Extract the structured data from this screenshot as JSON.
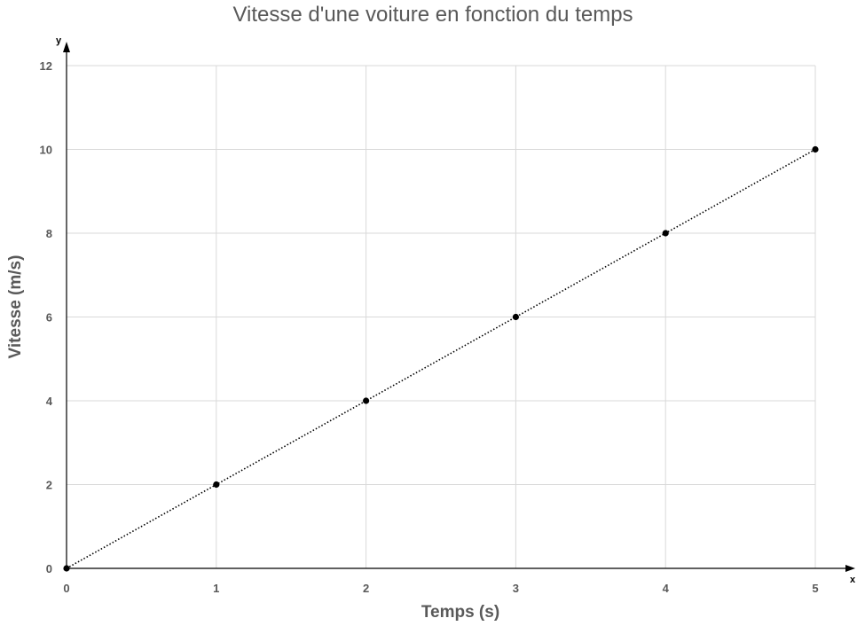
{
  "chart_data": {
    "type": "scatter",
    "title": "Vitesse d'une voiture en fonction du temps",
    "xlabel": "Temps (s)",
    "ylabel": "Vitesse (m/s)",
    "x_axis_letter": "x",
    "y_axis_letter": "y",
    "xlim": [
      0,
      5
    ],
    "ylim": [
      0,
      12
    ],
    "x_ticks": [
      0,
      1,
      2,
      3,
      4,
      5
    ],
    "y_ticks": [
      0,
      2,
      4,
      6,
      8,
      10,
      12
    ],
    "grid": true,
    "trendline": "linear, dotted",
    "series": [
      {
        "x": [
          0,
          1,
          2,
          3,
          4,
          5
        ],
        "y": [
          0,
          2,
          4,
          6,
          8,
          10
        ]
      }
    ]
  }
}
